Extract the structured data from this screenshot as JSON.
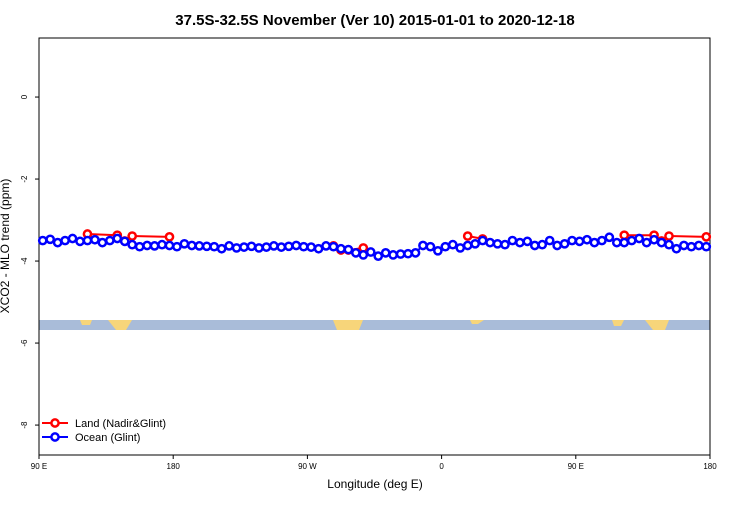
{
  "chart_data": {
    "type": "line",
    "title": "37.5S-32.5S November (Ver 10)   2015-01-01 to 2020-12-18",
    "x_label": "Longitude (deg E)",
    "y_label": "XCO2 - MLO trend (ppm)",
    "xlim": [
      90,
      540
    ],
    "xticks": [
      {
        "value": 90,
        "label": "90 E"
      },
      {
        "value": 180,
        "label": "180"
      },
      {
        "value": 270,
        "label": "90 W"
      },
      {
        "value": 360,
        "label": "0"
      },
      {
        "value": 450,
        "label": "90 E"
      },
      {
        "value": 540,
        "label": "180"
      }
    ],
    "ylim": [
      -8.73,
      1.44
    ],
    "yticks": [
      0,
      -2,
      -4,
      -6,
      -8
    ],
    "legend": "bottom-left",
    "series": [
      {
        "name": "Land (Nadir&Glint)",
        "color": "#ff0000",
        "x": [
          122.5,
          142.5,
          147.5,
          152.5,
          177.5,
          null,
          287.5,
          292.5,
          297.5,
          307.5,
          null,
          377.5,
          387.5,
          null,
          482.5,
          502.5,
          507.5,
          512.5,
          537.5
        ],
        "values": [
          -3.34,
          -3.37,
          -3.51,
          -3.39,
          -3.41,
          null,
          -3.63,
          -3.73,
          -3.73,
          -3.68,
          null,
          -3.39,
          -3.46,
          null,
          -3.37,
          -3.37,
          -3.51,
          -3.39,
          -3.41
        ]
      },
      {
        "name": "Ocean (Glint)",
        "color": "#0000ff",
        "x": [
          92.5,
          97.5,
          102.5,
          107.5,
          112.5,
          117.5,
          122.5,
          127.5,
          132.5,
          137.5,
          142.5,
          147.5,
          152.5,
          157.5,
          162.5,
          167.5,
          172.5,
          177.5,
          182.5,
          187.5,
          192.5,
          197.5,
          202.5,
          207.5,
          212.5,
          217.5,
          222.5,
          227.5,
          232.5,
          237.5,
          242.5,
          247.5,
          252.5,
          257.5,
          262.5,
          267.5,
          272.5,
          277.5,
          282.5,
          287.5,
          292.5,
          297.5,
          302.5,
          307.5,
          312.5,
          317.5,
          322.5,
          327.5,
          332.5,
          337.5,
          342.5,
          347.5,
          352.5,
          357.5,
          362.5,
          367.5,
          372.5,
          377.5,
          382.5,
          387.5,
          392.5,
          397.5,
          402.5,
          407.5,
          412.5,
          417.5,
          422.5,
          427.5,
          432.5,
          437.5,
          442.5,
          447.5,
          452.5,
          457.5,
          462.5,
          467.5,
          472.5,
          477.5,
          482.5,
          487.5,
          492.5,
          497.5,
          502.5,
          507.5,
          512.5,
          517.5,
          522.5,
          527.5,
          532.5,
          537.5
        ],
        "values": [
          -3.5,
          -3.47,
          -3.55,
          -3.5,
          -3.45,
          -3.52,
          -3.5,
          -3.48,
          -3.55,
          -3.5,
          -3.45,
          -3.52,
          -3.6,
          -3.65,
          -3.62,
          -3.63,
          -3.6,
          -3.62,
          -3.65,
          -3.58,
          -3.62,
          -3.63,
          -3.64,
          -3.65,
          -3.7,
          -3.63,
          -3.68,
          -3.66,
          -3.64,
          -3.68,
          -3.66,
          -3.63,
          -3.66,
          -3.64,
          -3.62,
          -3.65,
          -3.66,
          -3.7,
          -3.63,
          -3.65,
          -3.7,
          -3.72,
          -3.8,
          -3.85,
          -3.78,
          -3.88,
          -3.8,
          -3.85,
          -3.83,
          -3.82,
          -3.8,
          -3.62,
          -3.65,
          -3.75,
          -3.65,
          -3.6,
          -3.68,
          -3.62,
          -3.58,
          -3.5,
          -3.55,
          -3.58,
          -3.6,
          -3.5,
          -3.55,
          -3.52,
          -3.62,
          -3.6,
          -3.5,
          -3.62,
          -3.58,
          -3.5,
          -3.52,
          -3.48,
          -3.55,
          -3.5,
          -3.42,
          -3.55,
          -3.55,
          -3.5,
          -3.45,
          -3.55,
          -3.48,
          -3.55,
          -3.6,
          -3.7,
          -3.62,
          -3.65,
          -3.62,
          -3.65
        ]
      }
    ]
  }
}
